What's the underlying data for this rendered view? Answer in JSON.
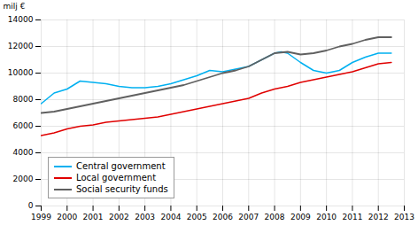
{
  "chart_data": {
    "type": "line",
    "ylabel": "milj €",
    "xlim": [
      1999,
      2013
    ],
    "ylim": [
      0,
      14000
    ],
    "xticks": [
      1999,
      2000,
      2001,
      2002,
      2003,
      2004,
      2005,
      2006,
      2007,
      2008,
      2009,
      2010,
      2011,
      2012,
      2013
    ],
    "yticks": [
      0,
      2000,
      4000,
      6000,
      8000,
      10000,
      12000,
      14000
    ],
    "grid": true,
    "legend": "lower left",
    "series": [
      {
        "name": "Central government",
        "color": "#00b0f0",
        "x": [
          1999.0,
          1999.5,
          2000.0,
          2000.5,
          2001.0,
          2001.5,
          2002.0,
          2002.5,
          2003.0,
          2003.5,
          2004.0,
          2004.5,
          2005.0,
          2005.5,
          2006.0,
          2006.5,
          2007.0,
          2007.5,
          2008.0,
          2008.25,
          2008.5,
          2009.0,
          2009.5,
          2010.0,
          2010.5,
          2011.0,
          2011.5,
          2012.0,
          2012.5
        ],
        "values": [
          7700,
          8500,
          8800,
          9400,
          9300,
          9200,
          9000,
          8900,
          8900,
          9000,
          9200,
          9500,
          9800,
          10200,
          10100,
          10300,
          10500,
          11000,
          11500,
          11600,
          11500,
          10800,
          10200,
          10000,
          10200,
          10800,
          11200,
          11500,
          11500
        ]
      },
      {
        "name": "Local government",
        "color": "#e00000",
        "x": [
          1999.0,
          1999.5,
          2000.0,
          2000.5,
          2001.0,
          2001.5,
          2002.0,
          2002.5,
          2003.0,
          2003.5,
          2004.0,
          2004.5,
          2005.0,
          2005.5,
          2006.0,
          2006.5,
          2007.0,
          2007.5,
          2008.0,
          2008.5,
          2009.0,
          2009.5,
          2010.0,
          2010.5,
          2011.0,
          2011.5,
          2012.0,
          2012.5
        ],
        "values": [
          5300,
          5500,
          5800,
          6000,
          6100,
          6300,
          6400,
          6500,
          6600,
          6700,
          6900,
          7100,
          7300,
          7500,
          7700,
          7900,
          8100,
          8500,
          8800,
          9000,
          9300,
          9500,
          9700,
          9900,
          10100,
          10400,
          10700,
          10800
        ]
      },
      {
        "name": "Social security funds",
        "color": "#606060",
        "x": [
          1999.0,
          1999.5,
          2000.0,
          2000.5,
          2001.0,
          2001.5,
          2002.0,
          2002.5,
          2003.0,
          2003.5,
          2004.0,
          2004.5,
          2005.0,
          2005.5,
          2006.0,
          2006.5,
          2007.0,
          2007.5,
          2008.0,
          2008.5,
          2009.0,
          2009.5,
          2010.0,
          2010.5,
          2011.0,
          2011.5,
          2012.0,
          2012.5
        ],
        "values": [
          7000,
          7100,
          7300,
          7500,
          7700,
          7900,
          8100,
          8300,
          8500,
          8700,
          8900,
          9100,
          9400,
          9700,
          10000,
          10200,
          10500,
          11000,
          11500,
          11600,
          11400,
          11500,
          11700,
          12000,
          12200,
          12500,
          12700,
          12700
        ]
      }
    ]
  }
}
